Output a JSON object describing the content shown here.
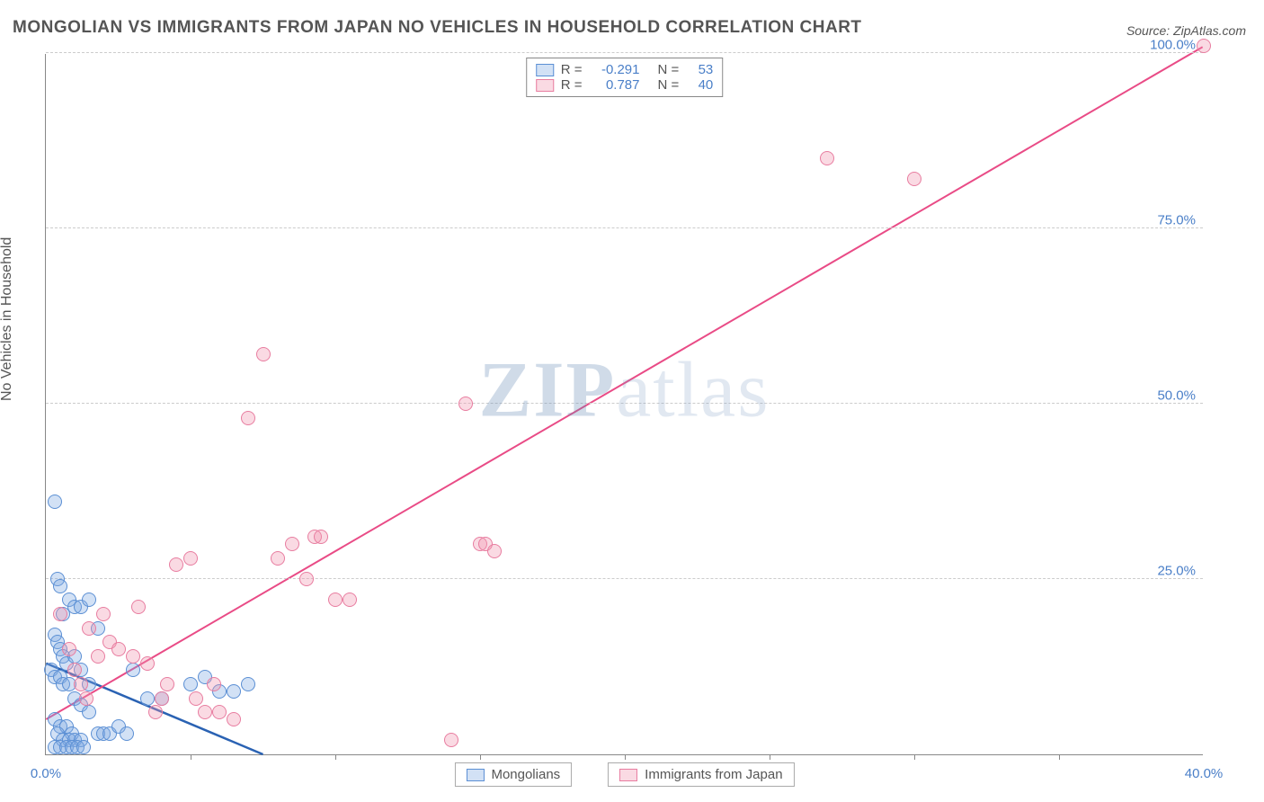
{
  "title": "MONGOLIAN VS IMMIGRANTS FROM JAPAN NO VEHICLES IN HOUSEHOLD CORRELATION CHART",
  "title_color": "#555555",
  "source_prefix": "Source: ",
  "source_name": "ZipAtlas.com",
  "source_color": "#555555",
  "watermark_zip": "ZIP",
  "watermark_atlas": "atlas",
  "chart": {
    "type": "scatter",
    "xlim": [
      0,
      40
    ],
    "ylim": [
      0,
      100
    ],
    "xlabel": "",
    "ylabel": "No Vehicles in Household",
    "ylabel_color": "#555555",
    "background_color": "#ffffff",
    "grid_color": "#cccccc",
    "axis_color": "#888888",
    "xticks": [
      {
        "v": 0,
        "label": "0.0%"
      },
      {
        "v": 40,
        "label": "40.0%"
      }
    ],
    "xticks_minor": [
      5,
      10,
      15,
      20,
      25,
      30,
      35
    ],
    "yticks": [
      {
        "v": 25,
        "label": "25.0%"
      },
      {
        "v": 50,
        "label": "50.0%"
      },
      {
        "v": 75,
        "label": "75.0%"
      },
      {
        "v": 100,
        "label": "100.0%"
      }
    ],
    "tick_label_color": "#4a7fc8",
    "point_radius": 8,
    "series": [
      {
        "name": "Mongolians",
        "fill": "rgba(125,170,225,0.35)",
        "stroke": "#5b8fd4",
        "R": "-0.291",
        "N": "53",
        "trend": {
          "x1": 0,
          "y1": 13,
          "x2": 7.5,
          "y2": 0,
          "color": "#2a62b3",
          "width": 2.5
        },
        "data": [
          [
            0.3,
            36
          ],
          [
            0.4,
            25
          ],
          [
            0.5,
            24
          ],
          [
            0.6,
            20
          ],
          [
            0.8,
            22
          ],
          [
            0.3,
            17
          ],
          [
            0.4,
            16
          ],
          [
            0.5,
            15
          ],
          [
            0.6,
            14
          ],
          [
            0.7,
            13
          ],
          [
            0.2,
            12
          ],
          [
            0.3,
            11
          ],
          [
            0.5,
            11
          ],
          [
            0.6,
            10
          ],
          [
            0.8,
            10
          ],
          [
            1.0,
            21
          ],
          [
            1.2,
            21
          ],
          [
            1.5,
            22
          ],
          [
            1.8,
            18
          ],
          [
            1.0,
            14
          ],
          [
            1.2,
            12
          ],
          [
            1.5,
            10
          ],
          [
            1.0,
            8
          ],
          [
            1.2,
            7
          ],
          [
            1.5,
            6
          ],
          [
            0.3,
            5
          ],
          [
            0.5,
            4
          ],
          [
            0.7,
            4
          ],
          [
            0.9,
            3
          ],
          [
            0.4,
            3
          ],
          [
            0.6,
            2
          ],
          [
            0.8,
            2
          ],
          [
            1.0,
            2
          ],
          [
            1.2,
            2
          ],
          [
            0.3,
            1
          ],
          [
            0.5,
            1
          ],
          [
            0.7,
            1
          ],
          [
            0.9,
            1
          ],
          [
            1.1,
            1
          ],
          [
            1.3,
            1
          ],
          [
            1.8,
            3
          ],
          [
            2.0,
            3
          ],
          [
            2.2,
            3
          ],
          [
            2.5,
            4
          ],
          [
            2.8,
            3
          ],
          [
            3.0,
            12
          ],
          [
            3.5,
            8
          ],
          [
            4.0,
            8
          ],
          [
            5.0,
            10
          ],
          [
            5.5,
            11
          ],
          [
            6.0,
            9
          ],
          [
            6.5,
            9
          ],
          [
            7.0,
            10
          ]
        ]
      },
      {
        "name": "Immigrants from Japan",
        "fill": "rgba(240,150,175,0.35)",
        "stroke": "#e87da0",
        "R": "0.787",
        "N": "40",
        "trend": {
          "x1": 0,
          "y1": 5,
          "x2": 40,
          "y2": 101,
          "color": "#e94b86",
          "width": 2
        },
        "data": [
          [
            0.5,
            20
          ],
          [
            0.8,
            15
          ],
          [
            1.0,
            12
          ],
          [
            1.2,
            10
          ],
          [
            1.4,
            8
          ],
          [
            1.5,
            18
          ],
          [
            1.8,
            14
          ],
          [
            2.0,
            20
          ],
          [
            2.2,
            16
          ],
          [
            2.5,
            15
          ],
          [
            3.0,
            14
          ],
          [
            3.2,
            21
          ],
          [
            3.5,
            13
          ],
          [
            3.8,
            6
          ],
          [
            4.0,
            8
          ],
          [
            4.2,
            10
          ],
          [
            4.5,
            27
          ],
          [
            5.0,
            28
          ],
          [
            5.2,
            8
          ],
          [
            5.5,
            6
          ],
          [
            5.8,
            10
          ],
          [
            6.0,
            6
          ],
          [
            6.5,
            5
          ],
          [
            7.0,
            48
          ],
          [
            7.5,
            57
          ],
          [
            8.0,
            28
          ],
          [
            8.5,
            30
          ],
          [
            9.0,
            25
          ],
          [
            9.3,
            31
          ],
          [
            9.5,
            31
          ],
          [
            10.0,
            22
          ],
          [
            10.5,
            22
          ],
          [
            14.0,
            2
          ],
          [
            14.5,
            50
          ],
          [
            15.0,
            30
          ],
          [
            15.2,
            30
          ],
          [
            15.5,
            29
          ],
          [
            27.0,
            85
          ],
          [
            30.0,
            82
          ],
          [
            40.0,
            101
          ]
        ]
      }
    ],
    "legend_top": {
      "stat_label_color": "#555555",
      "stat_value_color": "#4a7fc8"
    },
    "legend_bottom_labels": [
      "Mongolians",
      "Immigrants from Japan"
    ]
  }
}
